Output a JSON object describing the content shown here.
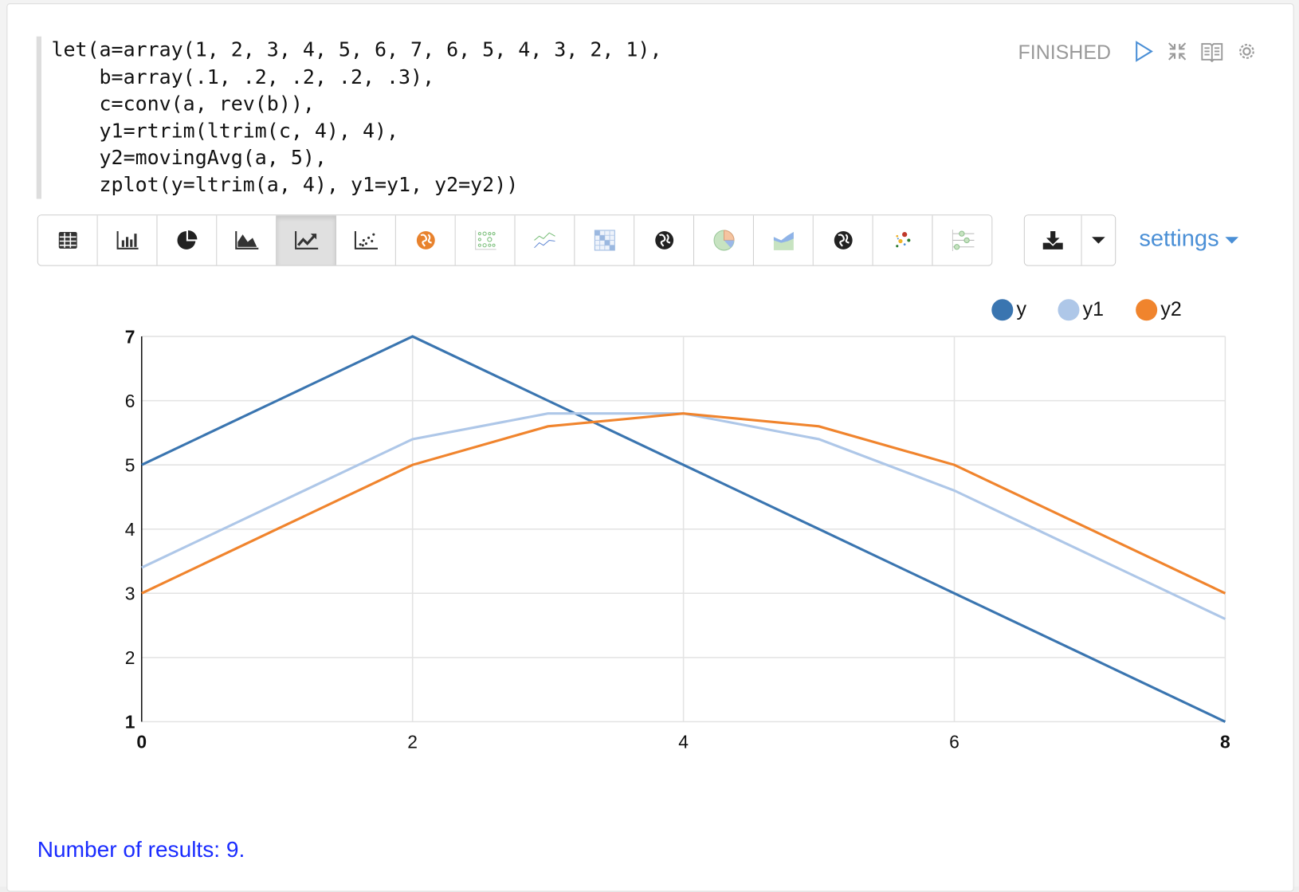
{
  "paragraph": {
    "code_lines": [
      "let(a=array(1, 2, 3, 4, 5, 6, 7, 6, 5, 4, 3, 2, 1),",
      "    b=array(.1, .2, .2, .2, .3),",
      "    c=conv(a, rev(b)),",
      "    y1=rtrim(ltrim(c, 4), 4),",
      "    y2=movingAvg(a, 5),",
      "    zplot(y=ltrim(a, 4), y1=y1, y2=y2))"
    ],
    "status": "FINISHED",
    "header_icons": [
      "run-icon",
      "collapse-icon",
      "book-icon",
      "gear-icon"
    ]
  },
  "toolbar": {
    "buttons": [
      "table",
      "bar-chart",
      "pie-chart",
      "area-chart",
      "line-chart",
      "scatter-chart",
      "orange-globe",
      "dot-grid",
      "multi-line",
      "heatmap",
      "globe",
      "color-pie",
      "stacked-area",
      "globe-2",
      "color-scatter",
      "sliders"
    ],
    "active": "line-chart",
    "download_icon": "download-icon",
    "dropdown_icon": "caret-down-icon",
    "settings_label": "settings"
  },
  "chart_data": {
    "type": "line",
    "x": [
      0,
      1,
      2,
      3,
      4,
      5,
      6,
      7,
      8
    ],
    "series": [
      {
        "name": "y",
        "color": "#3a75b0",
        "values": [
          5,
          6,
          7,
          6,
          5,
          4,
          3,
          2,
          1
        ]
      },
      {
        "name": "y1",
        "color": "#aec7e8",
        "values": [
          3.4,
          4.4,
          5.4,
          5.8,
          5.8,
          5.4,
          4.6,
          3.6,
          2.6
        ]
      },
      {
        "name": "y2",
        "color": "#f0842d",
        "values": [
          3,
          4,
          5,
          5.6,
          5.8,
          5.6,
          5,
          4,
          3
        ]
      }
    ],
    "xlim": [
      0,
      8
    ],
    "ylim": [
      1,
      7
    ],
    "xticks": [
      "0",
      "2",
      "4",
      "6",
      "8"
    ],
    "yticks": [
      "1",
      "2",
      "3",
      "4",
      "5",
      "6",
      "7"
    ],
    "grid": true,
    "legend": "top-right"
  },
  "footer": {
    "results": "Number of results: 9."
  }
}
